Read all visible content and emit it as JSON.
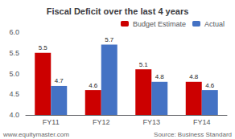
{
  "chart_data": {
    "type": "bar",
    "title": "Fiscal Deficit over the last 4 years",
    "categories": [
      "FY11",
      "FY12",
      "FY13",
      "FY14"
    ],
    "series": [
      {
        "name": "Budget Estimate",
        "color": "#cc0000",
        "values": [
          5.5,
          4.6,
          5.1,
          4.8
        ]
      },
      {
        "name": "Actual",
        "color": "#4472c4",
        "values": [
          4.7,
          5.7,
          4.8,
          4.6
        ]
      }
    ],
    "ylim": [
      4.0,
      6.0
    ],
    "yticks": [
      {
        "value": 4.0,
        "label": "4.0"
      },
      4.5,
      {
        "value": 5.0,
        "label": "5.0"
      },
      5.5,
      {
        "value": 6.0,
        "label": "6.0"
      }
    ],
    "data_labels": true,
    "legend": "upper right",
    "grid": false,
    "annotations": [
      "www.equitymaster.com",
      "Source: Business Standard"
    ]
  }
}
